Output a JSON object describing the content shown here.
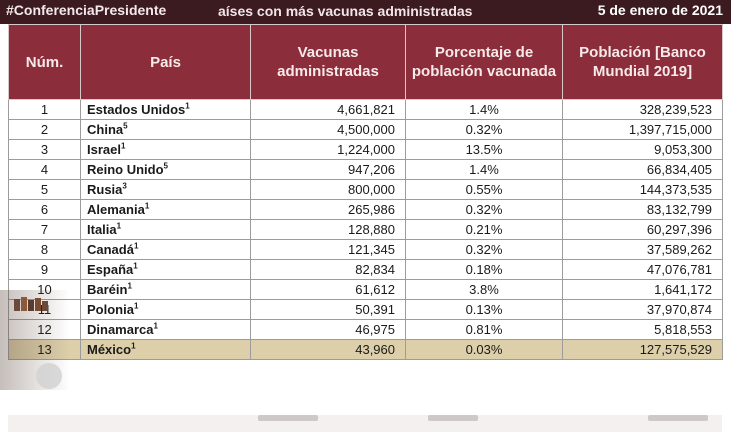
{
  "header": {
    "hashtag": "#ConferenciaPresidente",
    "title": "aíses con más vacunas administradas",
    "date": "5 de enero de 2021"
  },
  "table": {
    "columns": [
      "Núm.",
      "País",
      "Vacunas administradas",
      "Porcentaje de población vacunada",
      "Población [Banco Mundial 2019]"
    ],
    "rows": [
      {
        "num": "1",
        "country": "Estados Unidos",
        "sup": "1",
        "vaccines": "4,661,821",
        "percent": "1.4%",
        "population": "328,239,523"
      },
      {
        "num": "2",
        "country": "China",
        "sup": "5",
        "vaccines": "4,500,000",
        "percent": "0.32%",
        "population": "1,397,715,000"
      },
      {
        "num": "3",
        "country": "Israel",
        "sup": "1",
        "vaccines": "1,224,000",
        "percent": "13.5%",
        "population": "9,053,300"
      },
      {
        "num": "4",
        "country": "Reino Unido",
        "sup": "5",
        "vaccines": "947,206",
        "percent": "1.4%",
        "population": "66,834,405"
      },
      {
        "num": "5",
        "country": "Rusia",
        "sup": "3",
        "vaccines": "800,000",
        "percent": "0.55%",
        "population": "144,373,535"
      },
      {
        "num": "6",
        "country": "Alemania",
        "sup": "1",
        "vaccines": "265,986",
        "percent": "0.32%",
        "population": "83,132,799"
      },
      {
        "num": "7",
        "country": "Italia",
        "sup": "1",
        "vaccines": "128,880",
        "percent": "0.21%",
        "population": "60,297,396"
      },
      {
        "num": "8",
        "country": "Canadá",
        "sup": "1",
        "vaccines": "121,345",
        "percent": "0.32%",
        "population": "37,589,262"
      },
      {
        "num": "9",
        "country": "España",
        "sup": "1",
        "vaccines": "82,834",
        "percent": "0.18%",
        "population": "47,076,781"
      },
      {
        "num": "10",
        "country": "Baréin",
        "sup": "1",
        "vaccines": "61,612",
        "percent": "3.8%",
        "population": "1,641,172"
      },
      {
        "num": "11",
        "country": "Polonia",
        "sup": "1",
        "vaccines": "50,391",
        "percent": "0.13%",
        "population": "37,970,874"
      },
      {
        "num": "12",
        "country": "Dinamarca",
        "sup": "1",
        "vaccines": "46,975",
        "percent": "0.81%",
        "population": "5,818,553"
      },
      {
        "num": "13",
        "country": "México",
        "sup": "1",
        "vaccines": "43,960",
        "percent": "0.03%",
        "population": "127,575,529"
      }
    ],
    "highlight_row": "13"
  },
  "colors": {
    "topbar": "#3b1a20",
    "header_bg": "#8b2d3a",
    "highlight_bg": "#dccfa9"
  }
}
